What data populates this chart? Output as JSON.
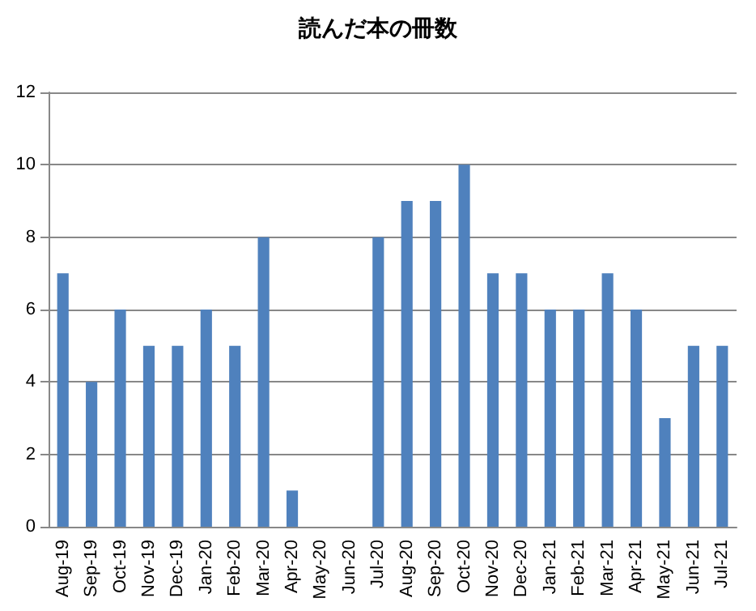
{
  "chart_data": {
    "type": "bar",
    "title": "読んだ本の冊数",
    "categories": [
      "Aug-19",
      "Sep-19",
      "Oct-19",
      "Nov-19",
      "Dec-19",
      "Jan-20",
      "Feb-20",
      "Mar-20",
      "Apr-20",
      "May-20",
      "Jun-20",
      "Jul-20",
      "Aug-20",
      "Sep-20",
      "Oct-20",
      "Nov-20",
      "Dec-20",
      "Jan-21",
      "Feb-21",
      "Mar-21",
      "Apr-21",
      "May-21",
      "Jun-21",
      "Jul-21"
    ],
    "values": [
      7,
      4,
      6,
      5,
      5,
      6,
      5,
      8,
      1,
      0,
      0,
      8,
      9,
      9,
      10,
      7,
      7,
      6,
      6,
      7,
      6,
      3,
      5,
      5
    ],
    "color": "#4f81bd",
    "ylim": [
      0,
      12
    ],
    "yticks": [
      0,
      2,
      4,
      6,
      8,
      10,
      12
    ],
    "grid": "y"
  }
}
